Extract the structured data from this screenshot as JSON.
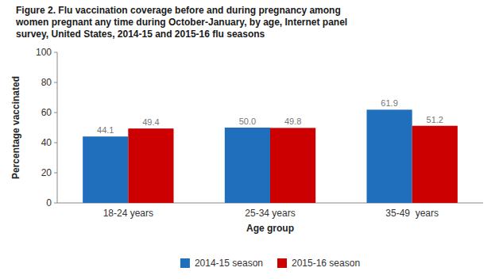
{
  "chart_data": {
    "type": "bar",
    "title": "Figure 2. Flu vaccination coverage before and during pregnancy among\nwomen pregnant any time during October-January, by age, Internet panel\nsurvey, United States, 2014-15 and 2015-16 flu seasons",
    "categories": [
      "18-24 years",
      "25-34 years",
      "35-49  years"
    ],
    "series": [
      {
        "name": "2014-15 season",
        "color": "#1f6fbd",
        "values": [
          44.1,
          50.0,
          61.9
        ],
        "value_labels": [
          "44.1",
          "50.0",
          "61.9"
        ]
      },
      {
        "name": "2015-16 season",
        "color": "#cc0000",
        "values": [
          49.4,
          49.8,
          51.2
        ],
        "value_labels": [
          "49.4",
          "49.8",
          "51.2"
        ]
      }
    ],
    "xlabel": "Age group",
    "ylabel": "Percentage vaccinated",
    "ylim": [
      0,
      100
    ],
    "yticks": [
      0,
      20,
      40,
      60,
      80,
      100
    ],
    "data_labels": true,
    "grid": false,
    "legend": "bottom"
  }
}
